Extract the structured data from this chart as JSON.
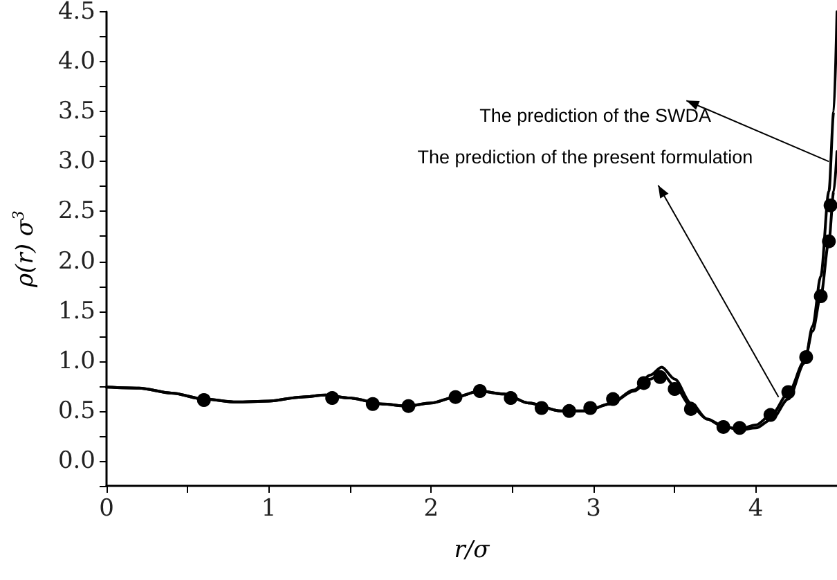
{
  "chart_data": {
    "type": "line",
    "xlabel": "r/σ",
    "ylabel": "ρ(r) σ$^{3}$",
    "xlim": [
      0,
      4.5
    ],
    "ylim": [
      -0.25,
      4.5
    ],
    "xticks": [
      0,
      {
        "value": 0.5,
        "label": null
      },
      1,
      {
        "value": 1.5,
        "label": null
      },
      2,
      {
        "value": 2.5,
        "label": null
      },
      3,
      {
        "value": 3.5,
        "label": null
      },
      4
    ],
    "yticks": [
      {
        "value": -0.25,
        "label": null
      },
      {
        "value": 0,
        "label": "0.0"
      },
      {
        "value": 0.25,
        "label": null
      },
      {
        "value": 0.5,
        "label": "0.5"
      },
      {
        "value": 0.75,
        "label": null
      },
      {
        "value": 1,
        "label": "1.0"
      },
      {
        "value": 1.25,
        "label": null
      },
      {
        "value": 1.5,
        "label": "1.5"
      },
      {
        "value": 1.75,
        "label": null
      },
      {
        "value": 2,
        "label": "2.0"
      },
      {
        "value": 2.25,
        "label": null
      },
      {
        "value": 2.5,
        "label": "2.5"
      },
      {
        "value": 2.75,
        "label": null
      },
      {
        "value": 3,
        "label": "3.0"
      },
      {
        "value": 3.25,
        "label": null
      },
      {
        "value": 3.5,
        "label": "3.5"
      },
      {
        "value": 3.75,
        "label": null
      },
      {
        "value": 4,
        "label": "4.0"
      },
      {
        "value": 4.25,
        "label": null
      },
      {
        "value": 4.5,
        "label": "4.5"
      }
    ],
    "grid": false,
    "line_style": "solid",
    "series": [
      {
        "color": "#000000",
        "marker": "none",
        "x": [
          0,
          0.2,
          0.4,
          0.6,
          0.8,
          1.0,
          1.2,
          1.35,
          1.5,
          1.7,
          1.85,
          2.0,
          2.15,
          2.3,
          2.45,
          2.6,
          2.8,
          2.95,
          3.1,
          3.25,
          3.35,
          3.42,
          3.5,
          3.6,
          3.7,
          3.8,
          3.9,
          4.0,
          4.1,
          4.2,
          4.3,
          4.35,
          4.4,
          4.45,
          4.48,
          4.5
        ],
        "values": [
          0.74,
          0.73,
          0.68,
          0.62,
          0.59,
          0.6,
          0.64,
          0.66,
          0.63,
          0.57,
          0.55,
          0.58,
          0.64,
          0.7,
          0.67,
          0.58,
          0.5,
          0.5,
          0.57,
          0.7,
          0.82,
          0.88,
          0.75,
          0.55,
          0.42,
          0.34,
          0.32,
          0.36,
          0.47,
          0.68,
          1.0,
          1.3,
          1.65,
          2.2,
          2.7,
          3.1
        ]
      },
      {
        "color": "#000000",
        "marker": "none",
        "x": [
          0,
          0.2,
          0.4,
          0.6,
          0.8,
          1.0,
          1.2,
          1.35,
          1.5,
          1.7,
          1.85,
          2.0,
          2.15,
          2.3,
          2.45,
          2.6,
          2.8,
          2.95,
          3.1,
          3.25,
          3.35,
          3.42,
          3.5,
          3.6,
          3.7,
          3.8,
          3.9,
          4.0,
          4.1,
          4.2,
          4.3,
          4.35,
          4.4,
          4.45,
          4.48,
          4.5
        ],
        "values": [
          0.74,
          0.73,
          0.68,
          0.62,
          0.59,
          0.6,
          0.64,
          0.66,
          0.63,
          0.57,
          0.55,
          0.58,
          0.64,
          0.7,
          0.67,
          0.58,
          0.5,
          0.5,
          0.57,
          0.71,
          0.86,
          0.94,
          0.82,
          0.58,
          0.42,
          0.35,
          0.31,
          0.33,
          0.42,
          0.62,
          0.98,
          1.35,
          1.85,
          2.7,
          3.5,
          4.5
        ]
      },
      {
        "type": "scatter",
        "color": "#000000",
        "marker": "circle",
        "x": [
          0.6,
          1.39,
          1.64,
          1.86,
          2.15,
          2.3,
          2.49,
          2.68,
          2.85,
          2.98,
          3.12,
          3.31,
          3.41,
          3.5,
          3.6,
          3.8,
          3.9,
          4.09,
          4.2,
          4.31,
          4.4,
          4.45,
          4.46
        ],
        "values": [
          0.61,
          0.63,
          0.57,
          0.55,
          0.64,
          0.7,
          0.63,
          0.53,
          0.5,
          0.53,
          0.62,
          0.78,
          0.84,
          0.72,
          0.52,
          0.34,
          0.33,
          0.46,
          0.69,
          1.04,
          1.65,
          2.2,
          2.56
        ]
      }
    ],
    "annotations": [
      {
        "text": "The prediction of the SWDA",
        "x": 4.45,
        "y": 3.0
      },
      {
        "text": "The prediction of the present formulation",
        "x": 4.14,
        "y": 0.64
      }
    ]
  }
}
